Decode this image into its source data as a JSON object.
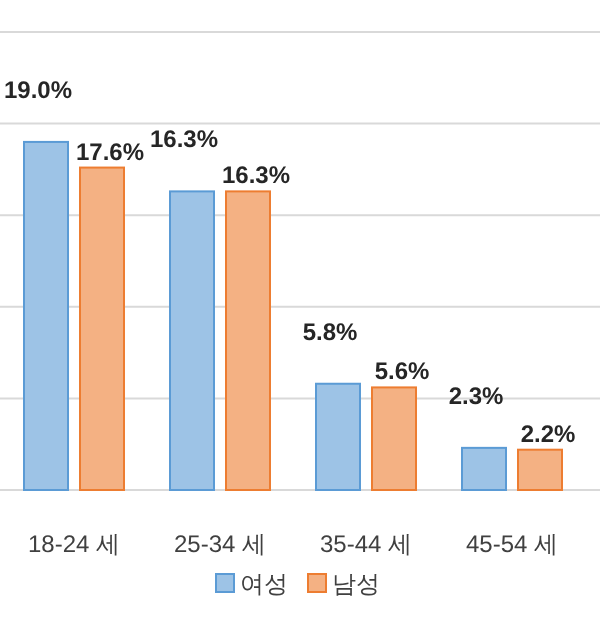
{
  "chart_data": {
    "type": "bar",
    "categories": [
      "18-24 세",
      "25-34 세",
      "35-44 세",
      "45-54 세"
    ],
    "series": [
      {
        "name": "여성",
        "color": "#9dc3e6",
        "values": [
          19.0,
          16.3,
          5.8,
          2.3
        ],
        "value_labels": [
          "19.0%",
          "16.3%",
          "5.8%",
          "2.3%"
        ]
      },
      {
        "name": "남성",
        "color": "#f4b183",
        "values": [
          17.6,
          16.3,
          5.6,
          2.2
        ],
        "value_labels": [
          "17.6%",
          "16.3%",
          "5.6%",
          "2.2%"
        ]
      }
    ],
    "ylim": [
      0,
      25
    ],
    "yticks": [
      {
        "value": 0,
        "label": null
      },
      {
        "value": 5,
        "label": null
      },
      {
        "value": 10,
        "label": null
      },
      {
        "value": 15,
        "label": null
      },
      {
        "value": 20,
        "label": null
      },
      {
        "value": 25,
        "label": null
      }
    ],
    "grid": "y",
    "legend": "bottom"
  }
}
